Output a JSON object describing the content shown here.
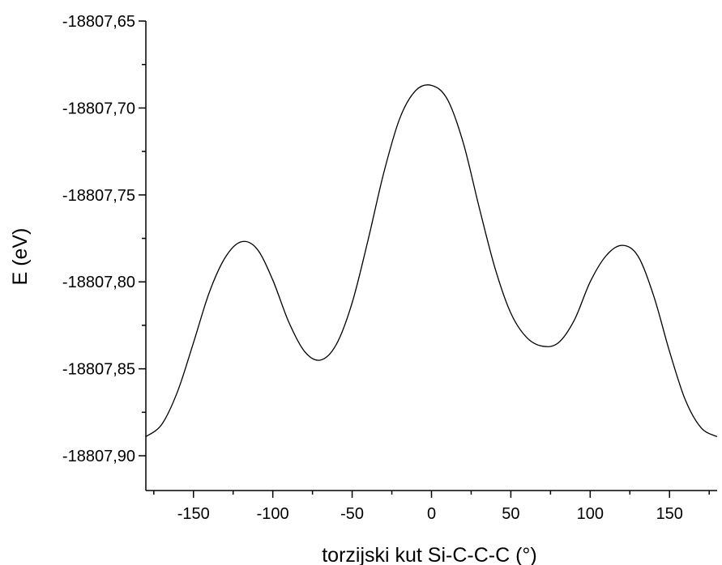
{
  "chart_data": {
    "type": "line",
    "title": "",
    "xlabel": "torzijski kut Si-C-C-C (°)",
    "ylabel": "E (eV)",
    "xlim": [
      -180,
      180
    ],
    "ylim": [
      -18807.92,
      -18807.65
    ],
    "x_ticks": [
      -150,
      -100,
      -50,
      0,
      50,
      100,
      150
    ],
    "x_tick_labels": [
      "-150",
      "-100",
      "-50",
      "0",
      "50",
      "100",
      "150"
    ],
    "y_ticks": [
      -18807.65,
      -18807.7,
      -18807.75,
      -18807.8,
      -18807.85,
      -18807.9
    ],
    "y_tick_labels": [
      "-18807,65",
      "-18807,70",
      "-18807,75",
      "-18807,80",
      "-18807,85",
      "-18807,90"
    ],
    "grid": false,
    "series": [
      {
        "color": "#000000",
        "x": [
          -180,
          -170,
          -160,
          -150,
          -140,
          -130,
          -120,
          -110,
          -100,
          -90,
          -80,
          -70,
          -60,
          -50,
          -40,
          -30,
          -20,
          -10,
          0,
          10,
          20,
          30,
          40,
          50,
          60,
          70,
          80,
          90,
          100,
          110,
          120,
          130,
          140,
          150,
          160,
          170,
          180
        ],
        "y": [
          -18807.889,
          -18807.882,
          -18807.863,
          -18807.835,
          -18807.806,
          -18807.786,
          -18807.777,
          -18807.781,
          -18807.799,
          -18807.823,
          -18807.84,
          -18807.845,
          -18807.836,
          -18807.812,
          -18807.776,
          -18807.737,
          -18807.706,
          -18807.69,
          -18807.687,
          -18807.695,
          -18807.72,
          -18807.757,
          -18807.792,
          -18807.818,
          -18807.832,
          -18807.837,
          -18807.835,
          -18807.822,
          -18807.8,
          -18807.785,
          -18807.779,
          -18807.785,
          -18807.808,
          -18807.84,
          -18807.868,
          -18807.884,
          -18807.889
        ]
      }
    ]
  }
}
